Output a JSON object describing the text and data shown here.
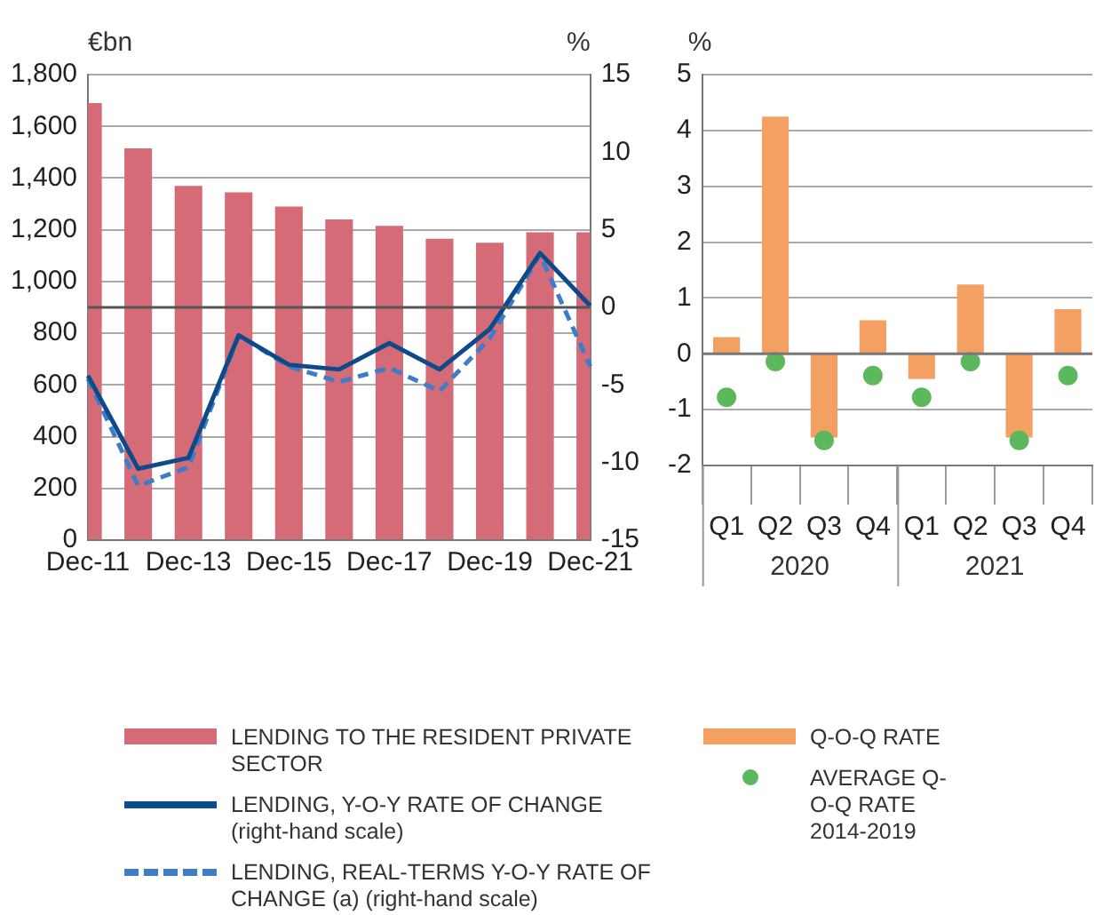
{
  "chart_data": [
    {
      "type": "bar",
      "ylabel": "€bn",
      "y2label": "%",
      "categories": [
        "Dec-11",
        null,
        "Dec-13",
        null,
        "Dec-15",
        null,
        "Dec-17",
        null,
        "Dec-19",
        null,
        "Dec-21"
      ],
      "series": [
        {
          "name": "LENDING TO THE RESIDENT PRIVATE SECTOR",
          "color": "#d66b78",
          "values": [
            1690,
            1515,
            1370,
            1345,
            1290,
            1240,
            1215,
            1165,
            1150,
            1190,
            1190
          ]
        },
        {
          "name": "LENDING, Y-O-Y RATE OF CHANGE (right-hand scale)",
          "type": "line",
          "axis": "y2",
          "color": "#0d4a8a",
          "line_style": "solid",
          "marker": "none",
          "values": [
            -4.4,
            -10.4,
            -9.7,
            -1.8,
            -3.7,
            -4.0,
            -2.3,
            -4.0,
            -1.4,
            3.5,
            0.1
          ]
        },
        {
          "name": "LENDING, REAL-TERMS Y-O-Y RATE OF CHANGE (a) (right-hand scale)",
          "type": "line",
          "axis": "y2",
          "color": "#3d7cc9",
          "line_style": "dashed",
          "marker": "none",
          "values": [
            -4.6,
            -11.5,
            -10.3,
            -1.8,
            -3.8,
            -4.8,
            -3.9,
            -5.4,
            -2.0,
            3.4,
            -3.8
          ]
        }
      ],
      "ylim": [
        0,
        1800
      ],
      "yticks": [
        {
          "value": 0,
          "label": "0"
        },
        {
          "value": 200,
          "label": "200"
        },
        {
          "value": 400,
          "label": "400"
        },
        {
          "value": 600,
          "label": "600"
        },
        {
          "value": 800,
          "label": "800"
        },
        {
          "value": 1000,
          "label": "1,000"
        },
        {
          "value": 1200,
          "label": "1,200"
        },
        {
          "value": 1400,
          "label": "1,400"
        },
        {
          "value": 1600,
          "label": "1,600"
        },
        {
          "value": 1800,
          "label": "1,800"
        }
      ],
      "y2lim": [
        -15,
        15
      ],
      "y2ticks": [
        -15,
        -10,
        -5,
        0,
        5,
        10,
        15
      ],
      "ref_lines": [
        {
          "axis": "y2",
          "value": 0,
          "color": "#555555"
        }
      ],
      "grid": "y",
      "legend": "bottom"
    },
    {
      "type": "bar",
      "ylabel": "%",
      "categories": [
        "Q1",
        "Q2",
        "Q3",
        "Q4",
        "Q1",
        "Q2",
        "Q3",
        "Q4"
      ],
      "series": [
        {
          "name": "Q-O-Q RATE",
          "color": "#f5a063",
          "values": [
            0.3,
            4.25,
            -1.5,
            0.6,
            -0.45,
            1.24,
            -1.5,
            0.8
          ]
        },
        {
          "name": "AVERAGE Q-O-Q RATE 2014-2019",
          "type": "scatter",
          "color": "#5cb85c",
          "marker": "circle",
          "values": [
            -0.78,
            -0.14,
            -1.55,
            -0.39,
            -0.78,
            -0.14,
            -1.55,
            -0.39
          ]
        }
      ],
      "ylim": [
        -2,
        5
      ],
      "yticks": [
        -2,
        -1,
        0,
        1,
        2,
        3,
        4,
        5
      ],
      "ref_lines": [
        {
          "axis": "y",
          "value": 0,
          "color": "#777777"
        }
      ],
      "annotations": [
        "2020",
        "2021"
      ],
      "grid": "y",
      "legend": "bottom"
    }
  ]
}
